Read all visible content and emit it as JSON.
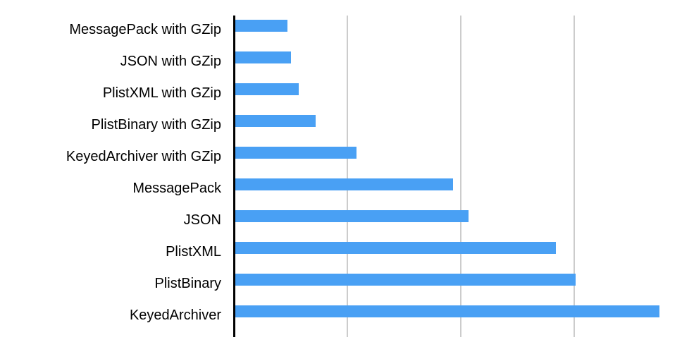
{
  "chart_data": {
    "type": "bar",
    "orientation": "horizontal",
    "title": "",
    "xlabel": "",
    "ylabel": "",
    "categories": [
      "MessagePack with GZip",
      "JSON with GZip",
      "PlistXML with GZip",
      "PlistBinary with GZip",
      "KeyedArchiver with GZip",
      "MessagePack",
      "JSON",
      "PlistXML",
      "PlistBinary",
      "KeyedArchiver"
    ],
    "values": [
      0.46,
      0.49,
      0.56,
      0.71,
      1.07,
      1.92,
      2.06,
      2.83,
      3.0,
      3.74
    ],
    "xlim": [
      0,
      3.94
    ],
    "x_gridlines": [
      1,
      2,
      3
    ],
    "x_tick_labels_visible": false,
    "grid": true,
    "legend": false,
    "colors": {
      "bar": "#49a0f4",
      "axis": "#000000",
      "gridline": "#cccccc",
      "background": "#ffffff",
      "label_text": "#000000"
    }
  }
}
